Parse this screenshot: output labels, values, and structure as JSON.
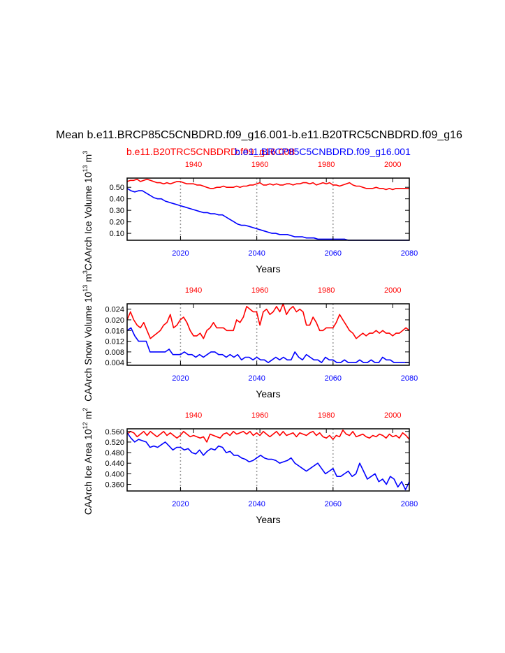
{
  "title": "Mean b.e11.BRCP85C5CNBDRD.f09_g16.001-b.e11.B20TRC5CNBDRD.f09_g16",
  "legend": {
    "red_label": "b.e11.B20TRC5CNBDRD.f09_g16.008",
    "blue_label": "b.e11.BRCP85C5CNBDRD.f09_g16.001"
  },
  "colors": {
    "red": "#ff0000",
    "blue": "#0000ff",
    "grid": "#999999",
    "axis": "#000000"
  },
  "chart_data": [
    {
      "type": "line",
      "ylabel": "CAArch Ice Volume 10$^{13}$ m$^{3}$",
      "ylabel_main": "CAArch Ice Volume 10",
      "ylabel_exp1": "13",
      "ylabel_mid": " m",
      "ylabel_exp2": "3",
      "xlabel": "Years",
      "bottom_axis": {
        "range": [
          2006,
          2080
        ],
        "ticks": [
          "2020",
          "2040",
          "2060",
          "2080"
        ]
      },
      "top_axis": {
        "range": [
          1920,
          2005
        ],
        "ticks": [
          "1940",
          "1960",
          "1980",
          "2000"
        ]
      },
      "ylim": [
        0.04,
        0.58
      ],
      "yticks": [
        "0.10",
        "0.20",
        "0.30",
        "0.40",
        "0.50"
      ],
      "grid_vlines_bottom_years": [
        2020,
        2040,
        2060
      ],
      "series": [
        {
          "axis": "top",
          "color": "red",
          "x_start": 1920,
          "values": [
            0.55,
            0.56,
            0.56,
            0.57,
            0.55,
            0.56,
            0.57,
            0.56,
            0.55,
            0.54,
            0.54,
            0.53,
            0.54,
            0.53,
            0.54,
            0.55,
            0.55,
            0.54,
            0.53,
            0.53,
            0.53,
            0.52,
            0.52,
            0.51,
            0.5,
            0.49,
            0.49,
            0.5,
            0.5,
            0.51,
            0.5,
            0.5,
            0.5,
            0.51,
            0.5,
            0.51,
            0.51,
            0.52,
            0.52,
            0.53,
            0.54,
            0.52,
            0.52,
            0.53,
            0.52,
            0.53,
            0.52,
            0.52,
            0.53,
            0.53,
            0.52,
            0.53,
            0.53,
            0.54,
            0.54,
            0.53,
            0.54,
            0.52,
            0.53,
            0.54,
            0.53,
            0.54,
            0.52,
            0.52,
            0.51,
            0.52,
            0.53,
            0.54,
            0.52,
            0.51,
            0.51,
            0.5,
            0.49,
            0.49,
            0.49,
            0.5,
            0.49,
            0.49,
            0.48,
            0.49,
            0.48,
            0.49,
            0.49,
            0.49,
            0.49,
            0.49
          ]
        },
        {
          "axis": "bottom",
          "color": "blue",
          "x_start": 2006,
          "values": [
            0.49,
            0.47,
            0.46,
            0.47,
            0.47,
            0.45,
            0.43,
            0.41,
            0.4,
            0.4,
            0.38,
            0.37,
            0.36,
            0.35,
            0.34,
            0.33,
            0.32,
            0.31,
            0.3,
            0.29,
            0.28,
            0.28,
            0.27,
            0.27,
            0.26,
            0.26,
            0.24,
            0.22,
            0.2,
            0.18,
            0.17,
            0.17,
            0.16,
            0.15,
            0.14,
            0.13,
            0.12,
            0.11,
            0.1,
            0.1,
            0.09,
            0.09,
            0.09,
            0.08,
            0.07,
            0.07,
            0.07,
            0.06,
            0.06,
            0.06,
            0.05,
            0.05,
            0.05,
            0.05,
            0.05,
            0.05,
            0.05,
            0.05,
            0.04,
            0.04,
            0.04,
            0.04,
            0.04,
            0.04,
            0.04,
            0.04,
            0.04,
            0.04,
            0.04,
            0.04,
            0.04,
            0.04,
            0.04,
            0.04,
            0.04
          ]
        }
      ]
    },
    {
      "type": "line",
      "ylabel_main": "CAArch Snow Volume 10",
      "ylabel_exp1": "13",
      "ylabel_mid": " m",
      "ylabel_exp2": "3",
      "xlabel": "Years",
      "bottom_axis": {
        "range": [
          2006,
          2080
        ],
        "ticks": [
          "2020",
          "2040",
          "2060",
          "2080"
        ]
      },
      "top_axis": {
        "range": [
          1920,
          2005
        ],
        "ticks": [
          "1940",
          "1960",
          "1980",
          "2000"
        ]
      },
      "ylim": [
        0.003,
        0.026
      ],
      "yticks": [
        "0.004",
        "0.008",
        "0.012",
        "0.016",
        "0.020",
        "0.024"
      ],
      "grid_vlines_bottom_years": [
        2020,
        2040,
        2060
      ],
      "series": [
        {
          "axis": "top",
          "color": "red",
          "x_start": 1920,
          "values": [
            0.02,
            0.023,
            0.02,
            0.018,
            0.017,
            0.019,
            0.016,
            0.013,
            0.014,
            0.015,
            0.016,
            0.018,
            0.019,
            0.022,
            0.017,
            0.018,
            0.02,
            0.021,
            0.019,
            0.016,
            0.014,
            0.014,
            0.015,
            0.013,
            0.016,
            0.017,
            0.019,
            0.017,
            0.017,
            0.017,
            0.016,
            0.016,
            0.016,
            0.02,
            0.019,
            0.021,
            0.025,
            0.024,
            0.023,
            0.023,
            0.018,
            0.023,
            0.024,
            0.022,
            0.023,
            0.025,
            0.023,
            0.026,
            0.022,
            0.024,
            0.025,
            0.023,
            0.024,
            0.023,
            0.018,
            0.018,
            0.021,
            0.019,
            0.016,
            0.016,
            0.017,
            0.017,
            0.017,
            0.019,
            0.022,
            0.02,
            0.018,
            0.016,
            0.015,
            0.013,
            0.014,
            0.015,
            0.014,
            0.015,
            0.015,
            0.016,
            0.015,
            0.016,
            0.015,
            0.015,
            0.014,
            0.015,
            0.015,
            0.016,
            0.017,
            0.016
          ]
        },
        {
          "axis": "bottom",
          "color": "blue",
          "x_start": 2006,
          "values": [
            0.016,
            0.017,
            0.014,
            0.012,
            0.012,
            0.012,
            0.008,
            0.008,
            0.008,
            0.008,
            0.008,
            0.009,
            0.007,
            0.007,
            0.007,
            0.008,
            0.007,
            0.007,
            0.006,
            0.007,
            0.006,
            0.007,
            0.008,
            0.008,
            0.007,
            0.007,
            0.006,
            0.007,
            0.006,
            0.007,
            0.005,
            0.006,
            0.006,
            0.005,
            0.006,
            0.005,
            0.005,
            0.004,
            0.005,
            0.006,
            0.005,
            0.006,
            0.005,
            0.005,
            0.008,
            0.006,
            0.005,
            0.007,
            0.006,
            0.005,
            0.005,
            0.004,
            0.006,
            0.005,
            0.005,
            0.004,
            0.004,
            0.005,
            0.004,
            0.004,
            0.004,
            0.005,
            0.004,
            0.004,
            0.005,
            0.004,
            0.004,
            0.006,
            0.005,
            0.005,
            0.004,
            0.004,
            0.004,
            0.004,
            0.004
          ]
        }
      ]
    },
    {
      "type": "line",
      "ylabel_main": "CAArch Ice Area 10",
      "ylabel_exp1": "12",
      "ylabel_mid": " m",
      "ylabel_exp2": "2",
      "xlabel": "Years",
      "bottom_axis": {
        "range": [
          2006,
          2080
        ],
        "ticks": [
          "2020",
          "2040",
          "2060",
          "2080"
        ]
      },
      "top_axis": {
        "range": [
          1920,
          2005
        ],
        "ticks": [
          "1940",
          "1960",
          "1980",
          "2000"
        ]
      },
      "ylim": [
        0.335,
        0.57
      ],
      "yticks": [
        "0.360",
        "0.400",
        "0.440",
        "0.480",
        "0.520",
        "0.560"
      ],
      "grid_vlines_bottom_years": [
        2020,
        2040,
        2060
      ],
      "series": [
        {
          "axis": "top",
          "color": "red",
          "x_start": 1920,
          "values": [
            0.55,
            0.56,
            0.555,
            0.54,
            0.55,
            0.56,
            0.545,
            0.56,
            0.55,
            0.54,
            0.55,
            0.56,
            0.545,
            0.555,
            0.545,
            0.535,
            0.545,
            0.56,
            0.55,
            0.54,
            0.545,
            0.54,
            0.535,
            0.54,
            0.52,
            0.55,
            0.545,
            0.54,
            0.535,
            0.55,
            0.555,
            0.545,
            0.56,
            0.55,
            0.555,
            0.56,
            0.55,
            0.56,
            0.545,
            0.555,
            0.545,
            0.56,
            0.55,
            0.54,
            0.55,
            0.56,
            0.545,
            0.56,
            0.545,
            0.55,
            0.555,
            0.54,
            0.555,
            0.55,
            0.545,
            0.555,
            0.56,
            0.545,
            0.555,
            0.54,
            0.535,
            0.545,
            0.53,
            0.545,
            0.54,
            0.565,
            0.55,
            0.545,
            0.56,
            0.54,
            0.545,
            0.55,
            0.54,
            0.535,
            0.545,
            0.54,
            0.55,
            0.545,
            0.535,
            0.55,
            0.54,
            0.545,
            0.535,
            0.555,
            0.545,
            0.53
          ]
        },
        {
          "axis": "bottom",
          "color": "blue",
          "x_start": 2006,
          "values": [
            0.555,
            0.535,
            0.52,
            0.53,
            0.525,
            0.52,
            0.5,
            0.505,
            0.5,
            0.51,
            0.52,
            0.505,
            0.49,
            0.5,
            0.5,
            0.49,
            0.495,
            0.48,
            0.475,
            0.49,
            0.47,
            0.485,
            0.495,
            0.49,
            0.505,
            0.5,
            0.48,
            0.485,
            0.47,
            0.47,
            0.46,
            0.455,
            0.445,
            0.45,
            0.46,
            0.47,
            0.46,
            0.455,
            0.455,
            0.45,
            0.44,
            0.445,
            0.45,
            0.46,
            0.44,
            0.43,
            0.42,
            0.41,
            0.42,
            0.43,
            0.44,
            0.42,
            0.4,
            0.41,
            0.42,
            0.39,
            0.39,
            0.4,
            0.41,
            0.39,
            0.4,
            0.44,
            0.41,
            0.38,
            0.39,
            0.4,
            0.37,
            0.38,
            0.36,
            0.39,
            0.38,
            0.35,
            0.37,
            0.34,
            0.37
          ]
        }
      ]
    }
  ]
}
